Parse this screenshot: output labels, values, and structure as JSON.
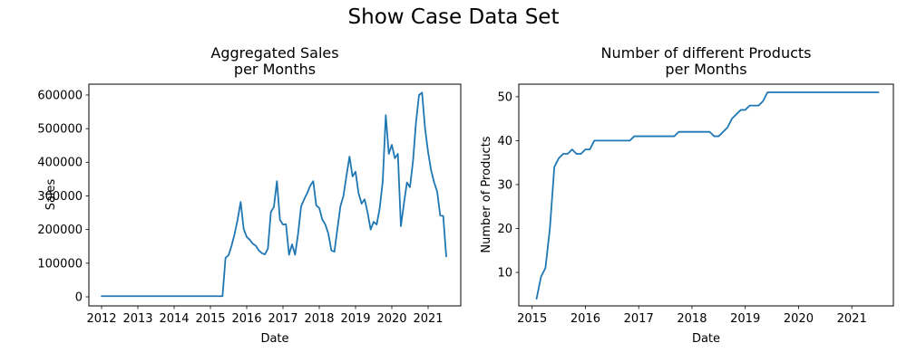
{
  "figure": {
    "title": "Show Case Data Set",
    "background": "#ffffff",
    "text_color": "#000000",
    "line_color": "#1f77b4"
  },
  "chart_data": [
    {
      "id": "sales",
      "type": "line",
      "title": "Aggregated Sales\nper Months",
      "xlabel": "Date",
      "ylabel": "Sales",
      "grid": false,
      "legend": null,
      "xlim": [
        2011.65,
        2021.9
      ],
      "ylim": [
        -26900,
        632230
      ],
      "xticks": [
        2012,
        2013,
        2014,
        2015,
        2016,
        2017,
        2018,
        2019,
        2020,
        2021
      ],
      "yticks": [
        0,
        100000,
        200000,
        300000,
        400000,
        500000,
        600000
      ],
      "x": [
        "2012-01",
        "2012-02",
        "2012-03",
        "2012-04",
        "2012-05",
        "2012-06",
        "2012-07",
        "2012-08",
        "2012-09",
        "2012-10",
        "2012-11",
        "2012-12",
        "2013-01",
        "2013-02",
        "2013-03",
        "2013-04",
        "2013-05",
        "2013-06",
        "2013-07",
        "2013-08",
        "2013-09",
        "2013-10",
        "2013-11",
        "2013-12",
        "2014-01",
        "2014-02",
        "2014-03",
        "2014-04",
        "2014-05",
        "2014-06",
        "2014-07",
        "2014-08",
        "2014-09",
        "2014-10",
        "2014-11",
        "2014-12",
        "2015-01",
        "2015-02",
        "2015-03",
        "2015-04",
        "2015-05",
        "2015-06",
        "2015-07",
        "2015-08",
        "2015-09",
        "2015-10",
        "2015-11",
        "2015-12",
        "2016-01",
        "2016-02",
        "2016-03",
        "2016-04",
        "2016-05",
        "2016-06",
        "2016-07",
        "2016-08",
        "2016-09",
        "2016-10",
        "2016-11",
        "2016-12",
        "2017-01",
        "2017-02",
        "2017-03",
        "2017-04",
        "2017-05",
        "2017-06",
        "2017-07",
        "2017-08",
        "2017-09",
        "2017-10",
        "2017-11",
        "2017-12",
        "2018-01",
        "2018-02",
        "2018-03",
        "2018-04",
        "2018-05",
        "2018-06",
        "2018-07",
        "2018-08",
        "2018-09",
        "2018-10",
        "2018-11",
        "2018-12",
        "2019-01",
        "2019-02",
        "2019-03",
        "2019-04",
        "2019-05",
        "2019-06",
        "2019-07",
        "2019-08",
        "2019-09",
        "2019-10",
        "2019-11",
        "2019-12",
        "2020-01",
        "2020-02",
        "2020-03",
        "2020-04",
        "2020-05",
        "2020-06",
        "2020-07",
        "2020-08",
        "2020-09",
        "2020-10",
        "2020-11",
        "2020-12",
        "2021-01",
        "2021-02",
        "2021-03",
        "2021-04",
        "2021-05",
        "2021-06",
        "2021-07"
      ],
      "values": [
        2000,
        2000,
        2000,
        2000,
        2000,
        2000,
        2000,
        2000,
        2000,
        2000,
        2000,
        2000,
        2000,
        2000,
        2000,
        2000,
        2000,
        2000,
        2000,
        2000,
        2000,
        2000,
        2000,
        2000,
        2000,
        2000,
        2000,
        2000,
        2000,
        2000,
        2000,
        2000,
        2000,
        2000,
        2000,
        2000,
        2000,
        2000,
        2000,
        2000,
        2000,
        116000,
        124000,
        152000,
        187000,
        230000,
        282000,
        202000,
        178000,
        170000,
        158000,
        152000,
        138000,
        130000,
        126000,
        143000,
        252000,
        268000,
        344000,
        229000,
        215000,
        216000,
        125000,
        156000,
        125000,
        188000,
        269000,
        290000,
        308000,
        330000,
        344000,
        272000,
        264000,
        230000,
        215000,
        188000,
        138000,
        134000,
        202000,
        269000,
        300000,
        360000,
        417000,
        358000,
        372000,
        308000,
        277000,
        290000,
        250000,
        200000,
        223000,
        215000,
        264000,
        344000,
        540000,
        425000,
        452000,
        412000,
        425000,
        210000,
        277000,
        340000,
        326000,
        403000,
        519000,
        600000,
        607000,
        500000,
        430000,
        376000,
        340000,
        313000,
        242000,
        240000,
        120000
      ]
    },
    {
      "id": "products",
      "type": "line",
      "title": "Number of different Products\nper Months",
      "xlabel": "Date",
      "ylabel": "Number of Products",
      "grid": false,
      "legend": null,
      "xlim": [
        2014.75,
        2021.78
      ],
      "ylim": [
        2.38,
        52.86
      ],
      "xticks": [
        2015,
        2016,
        2017,
        2018,
        2019,
        2020,
        2021
      ],
      "yticks": [
        10,
        20,
        30,
        40,
        50
      ],
      "x": [
        "2015-02",
        "2015-03",
        "2015-04",
        "2015-05",
        "2015-06",
        "2015-07",
        "2015-08",
        "2015-09",
        "2015-10",
        "2015-11",
        "2015-12",
        "2016-01",
        "2016-02",
        "2016-03",
        "2016-04",
        "2016-05",
        "2016-06",
        "2016-07",
        "2016-08",
        "2016-09",
        "2016-10",
        "2016-11",
        "2016-12",
        "2017-01",
        "2017-02",
        "2017-03",
        "2017-04",
        "2017-05",
        "2017-06",
        "2017-07",
        "2017-08",
        "2017-09",
        "2017-10",
        "2017-11",
        "2017-12",
        "2018-01",
        "2018-02",
        "2018-03",
        "2018-04",
        "2018-05",
        "2018-06",
        "2018-07",
        "2018-08",
        "2018-09",
        "2018-10",
        "2018-11",
        "2018-12",
        "2019-01",
        "2019-02",
        "2019-03",
        "2019-04",
        "2019-05",
        "2019-06",
        "2019-07",
        "2019-08",
        "2019-09",
        "2019-10",
        "2019-11",
        "2019-12",
        "2020-01",
        "2020-02",
        "2020-03",
        "2020-04",
        "2020-05",
        "2020-06",
        "2020-07",
        "2020-08",
        "2020-09",
        "2020-10",
        "2020-11",
        "2020-12",
        "2021-01",
        "2021-02",
        "2021-03",
        "2021-04",
        "2021-05",
        "2021-06",
        "2021-07"
      ],
      "values": [
        4,
        9,
        11,
        20,
        34,
        36,
        37,
        37,
        38,
        37,
        37,
        38,
        38,
        40,
        40,
        40,
        40,
        40,
        40,
        40,
        40,
        40,
        41,
        41,
        41,
        41,
        41,
        41,
        41,
        41,
        41,
        41,
        42,
        42,
        42,
        42,
        42,
        42,
        42,
        42,
        41,
        41,
        42,
        43,
        45,
        46,
        47,
        47,
        48,
        48,
        48,
        49,
        51,
        51,
        51,
        51,
        51,
        51,
        51,
        51,
        51,
        51,
        51,
        51,
        51,
        51,
        51,
        51,
        51,
        51,
        51,
        51,
        51,
        51,
        51,
        51,
        51,
        51
      ]
    }
  ]
}
